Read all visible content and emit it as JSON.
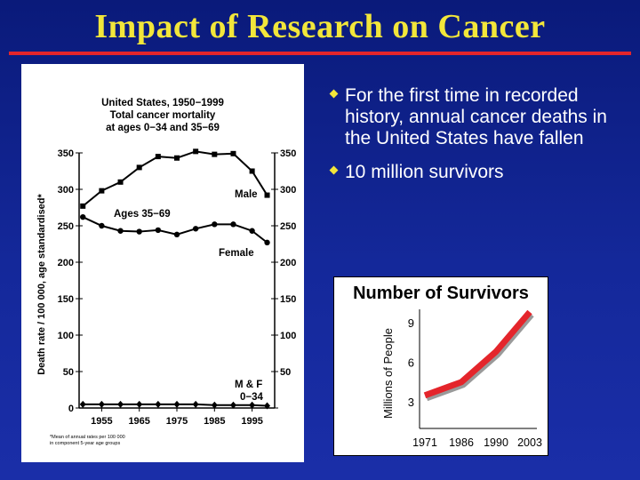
{
  "slide": {
    "title": "Impact of Research on Cancer",
    "accent_color": "#e4252b",
    "title_color": "#f2e63a",
    "bullets": [
      "For the first time in recorded history, annual cancer deaths in the United States have fallen",
      "10 million survivors"
    ]
  },
  "left_chart_text": {
    "title_lines": [
      "United States, 1950−1999",
      "Total cancer mortality",
      "at ages 0−34 and 35−69"
    ],
    "label_ages": "Ages 35−69",
    "label_male": "Male",
    "label_female": "Female",
    "label_mf_1": "M & F",
    "label_mf_2": "0−34",
    "footnote_1": "*Mean of annual rates per 100 000",
    "footnote_2": "in component 5-year age groups"
  },
  "chart_data": [
    {
      "type": "line",
      "title": "United States, 1950−1999 Total cancer mortality at ages 0−34 and 35−69",
      "ylabel": "Death rate / 100 000, age standardised*",
      "xlabel": "",
      "ylim": [
        0,
        350
      ],
      "y_ticks": [
        0,
        50,
        100,
        150,
        200,
        250,
        300,
        350
      ],
      "x_ticks": [
        1955,
        1965,
        1975,
        1985,
        1995
      ],
      "xlim": [
        1949,
        2001
      ],
      "x": [
        1950,
        1955,
        1960,
        1965,
        1970,
        1975,
        1980,
        1985,
        1990,
        1995,
        1999
      ],
      "series": [
        {
          "name": "Male",
          "values": [
            277,
            298,
            310,
            330,
            345,
            343,
            352,
            348,
            349,
            325,
            292
          ]
        },
        {
          "name": "Female",
          "values": [
            262,
            250,
            243,
            242,
            244,
            238,
            246,
            252,
            252,
            243,
            227
          ]
        },
        {
          "name": "M & F 0−34",
          "values": [
            5,
            5,
            5,
            5,
            5,
            5,
            5,
            4,
            4,
            4,
            3
          ]
        }
      ]
    },
    {
      "type": "line",
      "title": "Number of Survivors",
      "ylabel": "Millions of People",
      "xlabel": "",
      "categories": [
        "1971",
        "1986",
        "1990",
        "2003"
      ],
      "y_ticks": [
        3,
        6,
        9
      ],
      "ylim": [
        1,
        10
      ],
      "values": [
        3.5,
        4.5,
        6.8,
        9.8
      ],
      "line_color": "#e4252b"
    }
  ]
}
